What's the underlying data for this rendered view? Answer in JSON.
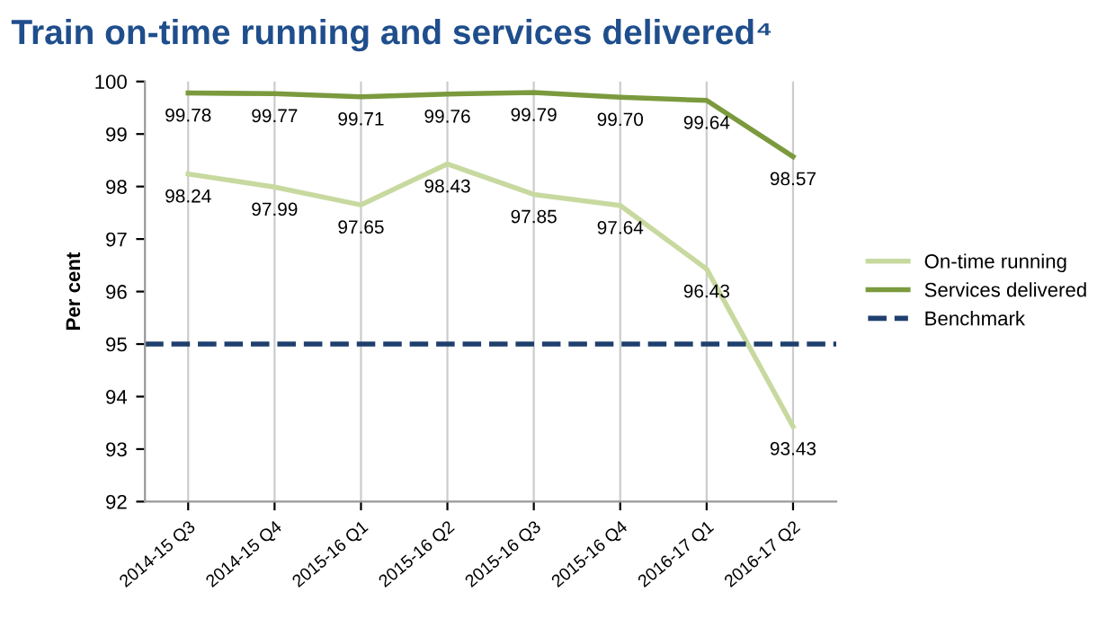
{
  "chart_data": {
    "type": "line",
    "title": "Train on-time running and services delivered⁴",
    "ylabel": "Per cent",
    "categories": [
      "2014-15 Q3",
      "2014-15 Q4",
      "2015-16 Q1",
      "2015-16 Q2",
      "2015-16 Q3",
      "2015-16 Q4",
      "2016-17 Q1",
      "2016-17 Q2"
    ],
    "series": [
      {
        "name": "On-time running",
        "color": "#c8d9a0",
        "values": [
          98.24,
          97.99,
          97.65,
          98.43,
          97.85,
          97.64,
          96.43,
          93.43
        ],
        "value_labels": [
          "98.24",
          "97.99",
          "97.65",
          "98.43",
          "97.85",
          "97.64",
          "96.43",
          "93.43"
        ]
      },
      {
        "name": "Services delivered",
        "color": "#7b9a3e",
        "values": [
          99.78,
          99.77,
          99.71,
          99.76,
          99.79,
          99.7,
          99.64,
          98.57
        ],
        "value_labels": [
          "99.78",
          "99.77",
          "99.71",
          "99.76",
          "99.79",
          "99.70",
          "99.64",
          "98.57"
        ]
      }
    ],
    "ref_lines": [
      {
        "axis": "y",
        "value": 95,
        "label": "Benchmark",
        "color": "#1f3f6e",
        "line_style": "dashed"
      }
    ],
    "ylim": [
      92,
      100
    ],
    "yticks": [
      92,
      93,
      94,
      95,
      96,
      97,
      98,
      99,
      100
    ],
    "grid": "x",
    "legend": "right",
    "marker": "none",
    "line_style": "solid"
  }
}
